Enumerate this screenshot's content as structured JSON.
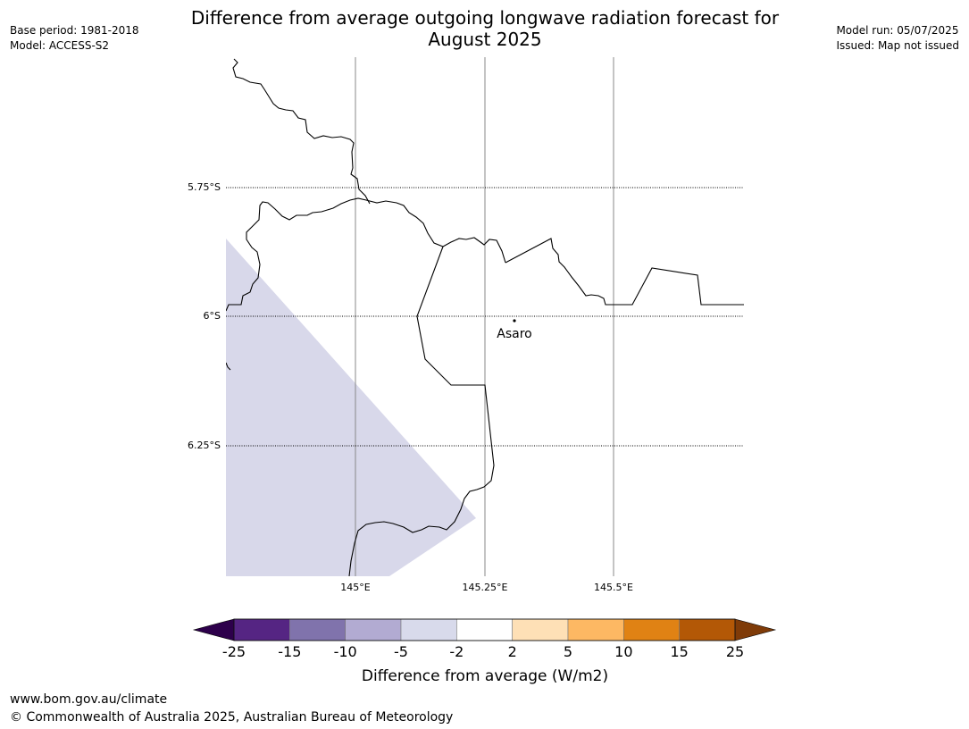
{
  "title_line1": "Difference from average outgoing longwave radiation forecast for",
  "title_line2": "August 2025",
  "meta_left": {
    "base_period": "Base period: 1981-2018",
    "model": "Model: ACCESS-S2"
  },
  "meta_right": {
    "model_run": "Model run: 05/07/2025",
    "issued": "Issued: Map not issued"
  },
  "map": {
    "lat_labels": [
      "5.75°S",
      "6°S",
      "6.25°S"
    ],
    "lon_labels": [
      "145°E",
      "145.25°E",
      "145.5°E"
    ],
    "place": {
      "name": "Asaro"
    },
    "fill_category": "-5 to -2",
    "fill_color": "#d8d8ea"
  },
  "colorbar": {
    "label": "Difference from average (W/m2)",
    "ticks": [
      "-25",
      "-15",
      "-10",
      "-5",
      "-2",
      "2",
      "5",
      "10",
      "15",
      "25"
    ],
    "colors": [
      "#552583",
      "#8073ac",
      "#b2abd2",
      "#d8daeb",
      "#ffffff",
      "#fee0b6",
      "#fdb863",
      "#e08214",
      "#b35806"
    ],
    "under_color": "#2d004b",
    "over_color": "#7f3b08"
  },
  "footer": {
    "url": "www.bom.gov.au/climate",
    "copyright": "© Commonwealth of Australia 2025, Australian Bureau of Meteorology"
  }
}
